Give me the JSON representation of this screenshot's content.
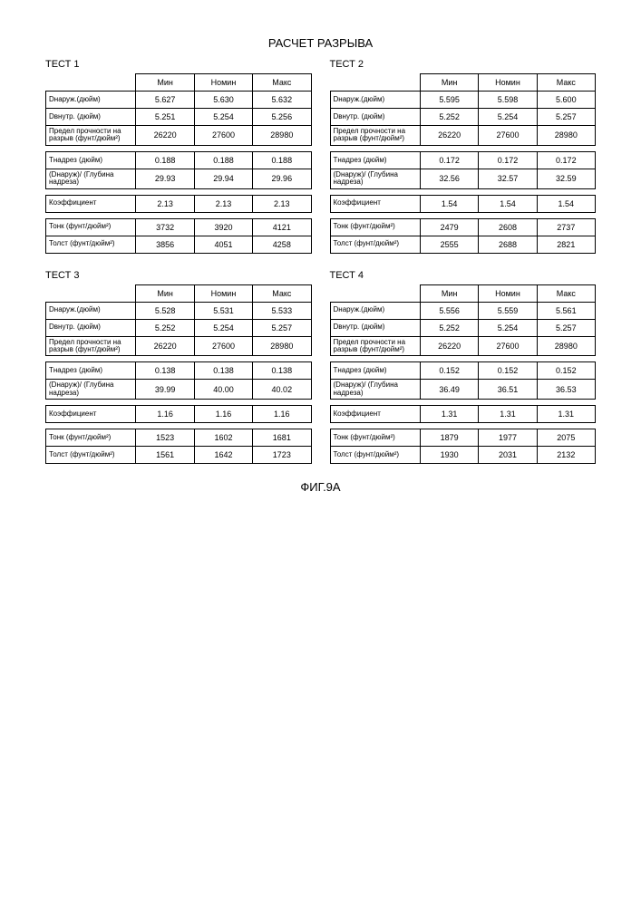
{
  "title": "РАСЧЕТ РАЗРЫВА",
  "figure": "ФИГ.9A",
  "hdr": {
    "min": "Мин",
    "nom": "Номин",
    "max": "Макс"
  },
  "rows": {
    "dout": "Dнаруж.(дюйм)",
    "din": "Dвнутр. (дюйм)",
    "psi": "Предел прочности на разрыв (фунт/дюйм²)",
    "tcut": "Tнадрез (дюйм)",
    "ratio": "(Dнаруж)/ (Глубина надреза)",
    "coef": "Коэффициент",
    "thin": "Тонк (фунт/дюйм²)",
    "thick": "Толст (фунт/дюйм²)"
  },
  "tests": [
    {
      "label": "ТЕСТ 1",
      "dout": [
        "5.627",
        "5.630",
        "5.632"
      ],
      "din": [
        "5.251",
        "5.254",
        "5.256"
      ],
      "psi": [
        "26220",
        "27600",
        "28980"
      ],
      "tcut": [
        "0.188",
        "0.188",
        "0.188"
      ],
      "ratio": [
        "29.93",
        "29.94",
        "29.96"
      ],
      "coef": [
        "2.13",
        "2.13",
        "2.13"
      ],
      "thin": [
        "3732",
        "3920",
        "4121"
      ],
      "thick": [
        "3856",
        "4051",
        "4258"
      ]
    },
    {
      "label": "ТЕСТ 2",
      "dout": [
        "5.595",
        "5.598",
        "5.600"
      ],
      "din": [
        "5.252",
        "5.254",
        "5.257"
      ],
      "psi": [
        "26220",
        "27600",
        "28980"
      ],
      "tcut": [
        "0.172",
        "0.172",
        "0.172"
      ],
      "ratio": [
        "32.56",
        "32.57",
        "32.59"
      ],
      "coef": [
        "1.54",
        "1.54",
        "1.54"
      ],
      "thin": [
        "2479",
        "2608",
        "2737"
      ],
      "thick": [
        "2555",
        "2688",
        "2821"
      ]
    },
    {
      "label": "ТЕСТ 3",
      "dout": [
        "5.528",
        "5.531",
        "5.533"
      ],
      "din": [
        "5.252",
        "5.254",
        "5.257"
      ],
      "psi": [
        "26220",
        "27600",
        "28980"
      ],
      "tcut": [
        "0.138",
        "0.138",
        "0.138"
      ],
      "ratio": [
        "39.99",
        "40.00",
        "40.02"
      ],
      "coef": [
        "1.16",
        "1.16",
        "1.16"
      ],
      "thin": [
        "1523",
        "1602",
        "1681"
      ],
      "thick": [
        "1561",
        "1642",
        "1723"
      ]
    },
    {
      "label": "ТЕСТ 4",
      "dout": [
        "5.556",
        "5.559",
        "5.561"
      ],
      "din": [
        "5.252",
        "5.254",
        "5.257"
      ],
      "psi": [
        "26220",
        "27600",
        "28980"
      ],
      "tcut": [
        "0.152",
        "0.152",
        "0.152"
      ],
      "ratio": [
        "36.49",
        "36.51",
        "36.53"
      ],
      "coef": [
        "1.31",
        "1.31",
        "1.31"
      ],
      "thin": [
        "1879",
        "1977",
        "2075"
      ],
      "thick": [
        "1930",
        "2031",
        "2132"
      ]
    }
  ]
}
